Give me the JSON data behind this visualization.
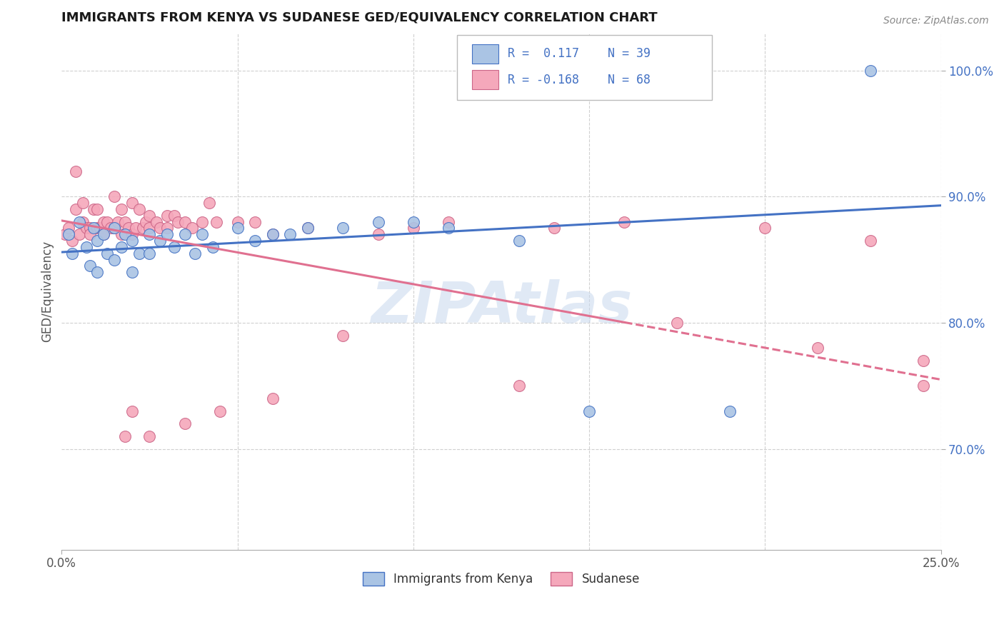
{
  "title": "IMMIGRANTS FROM KENYA VS SUDANESE GED/EQUIVALENCY CORRELATION CHART",
  "source_text": "Source: ZipAtlas.com",
  "ylabel": "GED/Equivalency",
  "xlim": [
    0.0,
    0.25
  ],
  "ylim": [
    0.62,
    1.03
  ],
  "xtick_labels": [
    "0.0%",
    "25.0%"
  ],
  "ytick_labels": [
    "70.0%",
    "80.0%",
    "90.0%",
    "100.0%"
  ],
  "ytick_values": [
    0.7,
    0.8,
    0.9,
    1.0
  ],
  "xtick_values": [
    0.0,
    0.25
  ],
  "color_kenya": "#aac4e4",
  "color_sudanese": "#f5a8bb",
  "color_line_kenya": "#4472C4",
  "color_line_sudanese": "#E07090",
  "color_text_blue": "#4472C4",
  "color_title": "#1a1a1a",
  "grid_color": "#d0d0d0",
  "watermark_text": "ZIPAtlas",
  "footer_label1": "Immigrants from Kenya",
  "footer_label2": "Sudanese",
  "kenya_R": 0.117,
  "kenya_N": 39,
  "sudanese_R": -0.168,
  "sudanese_N": 68,
  "scatter_kenya_x": [
    0.002,
    0.003,
    0.005,
    0.007,
    0.008,
    0.009,
    0.01,
    0.01,
    0.012,
    0.013,
    0.015,
    0.015,
    0.017,
    0.018,
    0.02,
    0.02,
    0.022,
    0.025,
    0.025,
    0.028,
    0.03,
    0.032,
    0.035,
    0.038,
    0.04,
    0.043,
    0.05,
    0.055,
    0.06,
    0.065,
    0.07,
    0.08,
    0.09,
    0.1,
    0.11,
    0.13,
    0.15,
    0.19,
    0.23
  ],
  "scatter_kenya_y": [
    0.87,
    0.855,
    0.88,
    0.86,
    0.845,
    0.875,
    0.865,
    0.84,
    0.87,
    0.855,
    0.875,
    0.85,
    0.86,
    0.87,
    0.865,
    0.84,
    0.855,
    0.87,
    0.855,
    0.865,
    0.87,
    0.86,
    0.87,
    0.855,
    0.87,
    0.86,
    0.875,
    0.865,
    0.87,
    0.87,
    0.875,
    0.875,
    0.88,
    0.88,
    0.875,
    0.865,
    0.73,
    0.73,
    1.0
  ],
  "scatter_sudanese_x": [
    0.001,
    0.002,
    0.003,
    0.004,
    0.004,
    0.005,
    0.006,
    0.006,
    0.007,
    0.008,
    0.008,
    0.009,
    0.01,
    0.01,
    0.011,
    0.012,
    0.012,
    0.013,
    0.014,
    0.015,
    0.015,
    0.016,
    0.017,
    0.017,
    0.018,
    0.019,
    0.02,
    0.02,
    0.021,
    0.022,
    0.023,
    0.024,
    0.025,
    0.025,
    0.027,
    0.028,
    0.03,
    0.03,
    0.032,
    0.033,
    0.035,
    0.037,
    0.04,
    0.042,
    0.044,
    0.05,
    0.055,
    0.06,
    0.07,
    0.08,
    0.09,
    0.1,
    0.11,
    0.13,
    0.14,
    0.16,
    0.175,
    0.2,
    0.215,
    0.23,
    0.245,
    0.245,
    0.06,
    0.045,
    0.035,
    0.025,
    0.02,
    0.018
  ],
  "scatter_sudanese_y": [
    0.87,
    0.875,
    0.865,
    0.92,
    0.89,
    0.87,
    0.88,
    0.895,
    0.875,
    0.875,
    0.87,
    0.89,
    0.89,
    0.875,
    0.875,
    0.88,
    0.87,
    0.88,
    0.875,
    0.9,
    0.875,
    0.88,
    0.89,
    0.87,
    0.88,
    0.875,
    0.87,
    0.895,
    0.875,
    0.89,
    0.875,
    0.88,
    0.885,
    0.875,
    0.88,
    0.875,
    0.885,
    0.875,
    0.885,
    0.88,
    0.88,
    0.875,
    0.88,
    0.895,
    0.88,
    0.88,
    0.88,
    0.87,
    0.875,
    0.79,
    0.87,
    0.875,
    0.88,
    0.75,
    0.875,
    0.88,
    0.8,
    0.875,
    0.78,
    0.865,
    0.75,
    0.77,
    0.74,
    0.73,
    0.72,
    0.71,
    0.73,
    0.71
  ],
  "trend_kenya_x0": 0.0,
  "trend_kenya_x1": 0.25,
  "trend_kenya_y0": 0.856,
  "trend_kenya_y1": 0.893,
  "trend_sudanese_x0": 0.0,
  "trend_sudanese_solid_x1": 0.16,
  "trend_sudanese_dash_x1": 0.25,
  "trend_sudanese_y0": 0.881,
  "trend_sudanese_y1": 0.755
}
